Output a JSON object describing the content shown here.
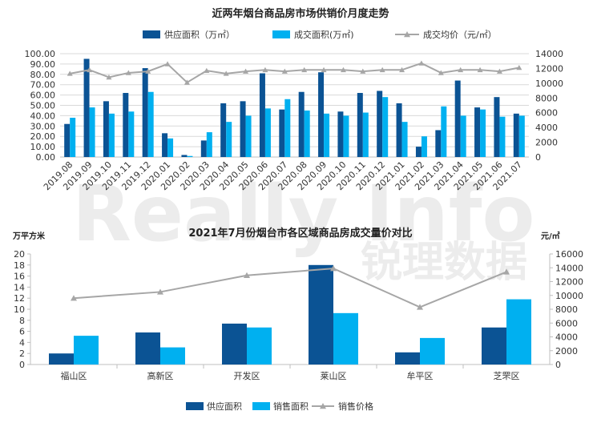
{
  "watermark": {
    "text1": "Really Info",
    "text2": "锐理数据"
  },
  "colors": {
    "supply": "#0B5394",
    "sold": "#00B0F0",
    "price": "#A6A6A6"
  },
  "chart_data": [
    {
      "type": "bar",
      "title": "近两年烟台商品房市场供销价月度走势",
      "categories": [
        "2019.08",
        "2019.09",
        "2019.10",
        "2019.11",
        "2019.12",
        "2020.01",
        "2020.02",
        "2020.03",
        "2020.04",
        "2020.05",
        "2020.06",
        "2020.07",
        "2020.08",
        "2020.09",
        "2020.10",
        "2020.11",
        "2020.12",
        "2021.01",
        "2021.02",
        "2021.03",
        "2021.04",
        "2021.05",
        "2021.06",
        "2021.07"
      ],
      "series": [
        {
          "name": "供应面积（万㎡）",
          "type": "bar",
          "axis": "left",
          "values": [
            32,
            95,
            54,
            62,
            86,
            23,
            2,
            16,
            52,
            54,
            81,
            46,
            63,
            82,
            44,
            62,
            64,
            52,
            10,
            26,
            74,
            48,
            58,
            42
          ]
        },
        {
          "name": "成交面积(万㎡)",
          "type": "bar",
          "axis": "left",
          "values": [
            38,
            48,
            42,
            44,
            63,
            18,
            1,
            24,
            34,
            40,
            47,
            56,
            45,
            42,
            40,
            43,
            58,
            34,
            20,
            49,
            40,
            46,
            39,
            40
          ]
        },
        {
          "name": "成交均价（元/㎡）",
          "type": "line",
          "axis": "right",
          "values": [
            11300,
            11800,
            10800,
            11400,
            11600,
            12600,
            10100,
            11700,
            11300,
            11600,
            11800,
            11600,
            11800,
            11800,
            11800,
            11600,
            11800,
            11800,
            12700,
            11400,
            11800,
            11800,
            11600,
            12100
          ]
        }
      ],
      "ylim": [
        0,
        100
      ],
      "y_ticks": [
        "0.00",
        "10.00",
        "20.00",
        "30.00",
        "40.00",
        "50.00",
        "60.00",
        "70.00",
        "80.00",
        "90.00",
        "100.00"
      ],
      "y2lim": [
        0,
        14000
      ],
      "y2_ticks": [
        "0",
        "2000",
        "4000",
        "6000",
        "8000",
        "10000",
        "12000",
        "14000"
      ],
      "grid": true,
      "legend_position": "top"
    },
    {
      "type": "bar",
      "title": "2021年7月份烟台市各区域商品房成交量价对比",
      "ylabel": "万平方米",
      "y2label": "元/㎡",
      "categories": [
        "福山区",
        "高新区",
        "开发区",
        "莱山区",
        "牟平区",
        "芝罘区"
      ],
      "series": [
        {
          "name": "供应面积",
          "type": "bar",
          "axis": "left",
          "values": [
            2.0,
            5.8,
            7.4,
            18.0,
            2.2,
            6.7
          ]
        },
        {
          "name": "销售面积",
          "type": "bar",
          "axis": "left",
          "values": [
            5.2,
            3.1,
            6.7,
            9.3,
            4.8,
            11.8
          ]
        },
        {
          "name": "销售价格",
          "type": "line",
          "axis": "right",
          "values": [
            9600,
            10500,
            12900,
            13900,
            8300,
            13400
          ]
        }
      ],
      "ylim": [
        0,
        20
      ],
      "y_ticks": [
        "0",
        "2",
        "4",
        "6",
        "8",
        "10",
        "12",
        "14",
        "16",
        "18",
        "20"
      ],
      "y2lim": [
        0,
        16000
      ],
      "y2_ticks": [
        "0",
        "2000",
        "4000",
        "6000",
        "8000",
        "10000",
        "12000",
        "14000",
        "16000"
      ],
      "grid": false,
      "legend_position": "bottom"
    }
  ]
}
